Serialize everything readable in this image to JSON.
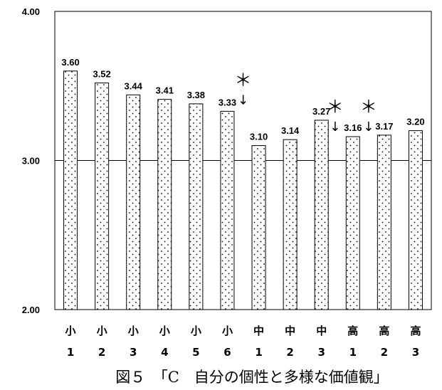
{
  "chart_data": {
    "type": "bar",
    "categories": [
      {
        "line1": "小",
        "line2": "1"
      },
      {
        "line1": "小",
        "line2": "2"
      },
      {
        "line1": "小",
        "line2": "3"
      },
      {
        "line1": "小",
        "line2": "4"
      },
      {
        "line1": "小",
        "line2": "5"
      },
      {
        "line1": "小",
        "line2": "6"
      },
      {
        "line1": "中",
        "line2": "1"
      },
      {
        "line1": "中",
        "line2": "2"
      },
      {
        "line1": "中",
        "line2": "3"
      },
      {
        "line1": "高",
        "line2": "1"
      },
      {
        "line1": "高",
        "line2": "2"
      },
      {
        "line1": "高",
        "line2": "3"
      }
    ],
    "values": [
      3.6,
      3.52,
      3.44,
      3.41,
      3.38,
      3.33,
      3.1,
      3.14,
      3.27,
      3.16,
      3.17,
      3.2
    ],
    "value_labels": [
      "3.60",
      "3.52",
      "3.44",
      "3.41",
      "3.38",
      "3.33",
      "3.10",
      "3.14",
      "3.27",
      "3.16",
      "3.17",
      "3.20"
    ],
    "ylim": [
      2.0,
      4.0
    ],
    "yticks": [
      "4.00",
      "3.00",
      "2.00"
    ],
    "reference_line": 3.0,
    "significance_marks": [
      {
        "between": [
          5,
          6
        ],
        "mark": "＊",
        "arrow": "↓"
      },
      {
        "between": [
          8,
          9
        ],
        "mark": "＊",
        "arrow": "↓",
        "position": "before"
      },
      {
        "between": [
          8,
          9
        ],
        "mark": "＊",
        "arrow": "↓",
        "position": "after"
      }
    ],
    "bar_fill": "dotted",
    "caption": "図５　「C　自分の個性と多様な価値観」",
    "title": "",
    "xlabel": "",
    "ylabel": ""
  }
}
